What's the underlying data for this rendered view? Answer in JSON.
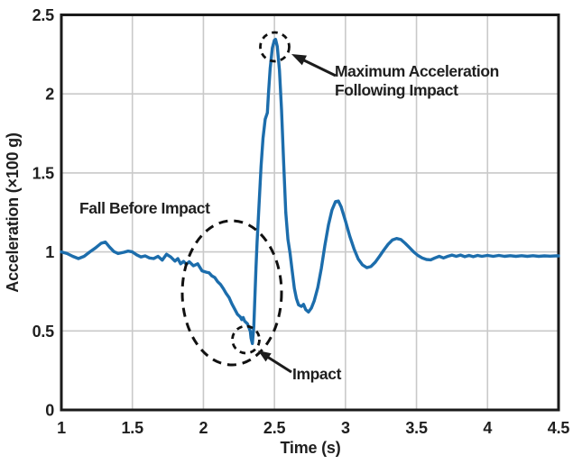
{
  "colors": {
    "line": "#1c6dac",
    "grid": "#c9c9c9",
    "axis": "#1a1a1a",
    "text": "#1f1f1f"
  },
  "chart_data": {
    "type": "line",
    "title": "",
    "xlabel": "Time (s)",
    "ylabel": "Acceleration (×100 g)",
    "xlim": [
      1,
      4.5
    ],
    "ylim": [
      0,
      2.5
    ],
    "x_ticks": [
      1,
      1.5,
      2,
      2.5,
      3,
      3.5,
      4,
      4.5
    ],
    "x_tick_labels": [
      "1",
      "1.5",
      "2",
      "2.5",
      "3",
      "3.5",
      "4",
      "4.5"
    ],
    "y_ticks": [
      0,
      0.5,
      1,
      1.5,
      2,
      2.5
    ],
    "y_tick_labels": [
      "0",
      "0.5",
      "1",
      "1.5",
      "2",
      "2.5"
    ],
    "grid": true,
    "legend_position": "none",
    "series": [
      {
        "name": "acceleration",
        "color": "#1c6dac",
        "points": [
          [
            1.0,
            1.0
          ],
          [
            1.04,
            0.99
          ],
          [
            1.08,
            0.972
          ],
          [
            1.12,
            0.958
          ],
          [
            1.16,
            0.972
          ],
          [
            1.2,
            1.0
          ],
          [
            1.24,
            1.025
          ],
          [
            1.28,
            1.055
          ],
          [
            1.31,
            1.062
          ],
          [
            1.34,
            1.03
          ],
          [
            1.37,
            1.002
          ],
          [
            1.4,
            0.99
          ],
          [
            1.44,
            0.998
          ],
          [
            1.47,
            1.005
          ],
          [
            1.5,
            1.0
          ],
          [
            1.53,
            0.982
          ],
          [
            1.56,
            0.968
          ],
          [
            1.59,
            0.975
          ],
          [
            1.62,
            0.962
          ],
          [
            1.65,
            0.958
          ],
          [
            1.68,
            0.972
          ],
          [
            1.71,
            0.948
          ],
          [
            1.74,
            0.985
          ],
          [
            1.77,
            0.968
          ],
          [
            1.8,
            0.942
          ],
          [
            1.82,
            0.958
          ],
          [
            1.84,
            0.925
          ],
          [
            1.86,
            0.94
          ],
          [
            1.88,
            0.922
          ],
          [
            1.9,
            0.938
          ],
          [
            1.93,
            0.912
          ],
          [
            1.96,
            0.925
          ],
          [
            1.99,
            0.88
          ],
          [
            2.02,
            0.872
          ],
          [
            2.04,
            0.868
          ],
          [
            2.06,
            0.848
          ],
          [
            2.08,
            0.838
          ],
          [
            2.1,
            0.812
          ],
          [
            2.12,
            0.795
          ],
          [
            2.14,
            0.768
          ],
          [
            2.16,
            0.738
          ],
          [
            2.18,
            0.712
          ],
          [
            2.2,
            0.672
          ],
          [
            2.22,
            0.638
          ],
          [
            2.24,
            0.605
          ],
          [
            2.26,
            0.588
          ],
          [
            2.27,
            0.572
          ],
          [
            2.28,
            0.585
          ],
          [
            2.29,
            0.562
          ],
          [
            2.31,
            0.545
          ],
          [
            2.32,
            0.522
          ],
          [
            2.33,
            0.498
          ],
          [
            2.335,
            0.455
          ],
          [
            2.345,
            0.42
          ],
          [
            2.355,
            0.53
          ],
          [
            2.362,
            0.7
          ],
          [
            2.37,
            0.9
          ],
          [
            2.378,
            1.06
          ],
          [
            2.392,
            1.3
          ],
          [
            2.406,
            1.54
          ],
          [
            2.42,
            1.72
          ],
          [
            2.435,
            1.84
          ],
          [
            2.45,
            1.88
          ],
          [
            2.458,
            2.0
          ],
          [
            2.47,
            2.16
          ],
          [
            2.485,
            2.29
          ],
          [
            2.5,
            2.34
          ],
          [
            2.508,
            2.345
          ],
          [
            2.52,
            2.3
          ],
          [
            2.535,
            2.15
          ],
          [
            2.55,
            1.9
          ],
          [
            2.565,
            1.56
          ],
          [
            2.58,
            1.25
          ],
          [
            2.595,
            1.08
          ],
          [
            2.61,
            0.99
          ],
          [
            2.625,
            0.88
          ],
          [
            2.64,
            0.77
          ],
          [
            2.655,
            0.705
          ],
          [
            2.67,
            0.665
          ],
          [
            2.69,
            0.655
          ],
          [
            2.705,
            0.668
          ],
          [
            2.72,
            0.635
          ],
          [
            2.74,
            0.62
          ],
          [
            2.76,
            0.645
          ],
          [
            2.78,
            0.69
          ],
          [
            2.805,
            0.775
          ],
          [
            2.83,
            0.895
          ],
          [
            2.855,
            1.04
          ],
          [
            2.88,
            1.17
          ],
          [
            2.905,
            1.265
          ],
          [
            2.93,
            1.318
          ],
          [
            2.95,
            1.322
          ],
          [
            2.97,
            1.285
          ],
          [
            3.0,
            1.195
          ],
          [
            3.03,
            1.1
          ],
          [
            3.06,
            1.02
          ],
          [
            3.09,
            0.955
          ],
          [
            3.12,
            0.918
          ],
          [
            3.15,
            0.9
          ],
          [
            3.18,
            0.908
          ],
          [
            3.21,
            0.935
          ],
          [
            3.24,
            0.972
          ],
          [
            3.27,
            1.012
          ],
          [
            3.3,
            1.048
          ],
          [
            3.33,
            1.075
          ],
          [
            3.36,
            1.085
          ],
          [
            3.39,
            1.078
          ],
          [
            3.42,
            1.055
          ],
          [
            3.45,
            1.028
          ],
          [
            3.48,
            1.0
          ],
          [
            3.51,
            0.978
          ],
          [
            3.54,
            0.962
          ],
          [
            3.57,
            0.952
          ],
          [
            3.6,
            0.95
          ],
          [
            3.63,
            0.962
          ],
          [
            3.66,
            0.972
          ],
          [
            3.69,
            0.962
          ],
          [
            3.72,
            0.972
          ],
          [
            3.75,
            0.98
          ],
          [
            3.78,
            0.972
          ],
          [
            3.81,
            0.98
          ],
          [
            3.84,
            0.97
          ],
          [
            3.87,
            0.978
          ],
          [
            3.9,
            0.97
          ],
          [
            3.93,
            0.978
          ],
          [
            3.96,
            0.972
          ],
          [
            4.0,
            0.978
          ],
          [
            4.04,
            0.972
          ],
          [
            4.08,
            0.978
          ],
          [
            4.12,
            0.972
          ],
          [
            4.16,
            0.976
          ],
          [
            4.2,
            0.972
          ],
          [
            4.24,
            0.976
          ],
          [
            4.28,
            0.972
          ],
          [
            4.32,
            0.976
          ],
          [
            4.36,
            0.972
          ],
          [
            4.4,
            0.975
          ],
          [
            4.44,
            0.973
          ],
          [
            4.48,
            0.975
          ],
          [
            4.5,
            0.975
          ]
        ]
      }
    ],
    "annotations": {
      "fall_before_impact": "Fall Before Impact",
      "max_accel_line1": "Maximum Acceleration",
      "max_accel_line2": "Following Impact",
      "impact": "Impact"
    },
    "key_points": {
      "maximum_acceleration": {
        "t": 2.5,
        "value": 2.34
      },
      "impact_dip": {
        "t": 2.34,
        "value": 0.42
      },
      "baseline": {
        "value": 1.0
      }
    }
  }
}
